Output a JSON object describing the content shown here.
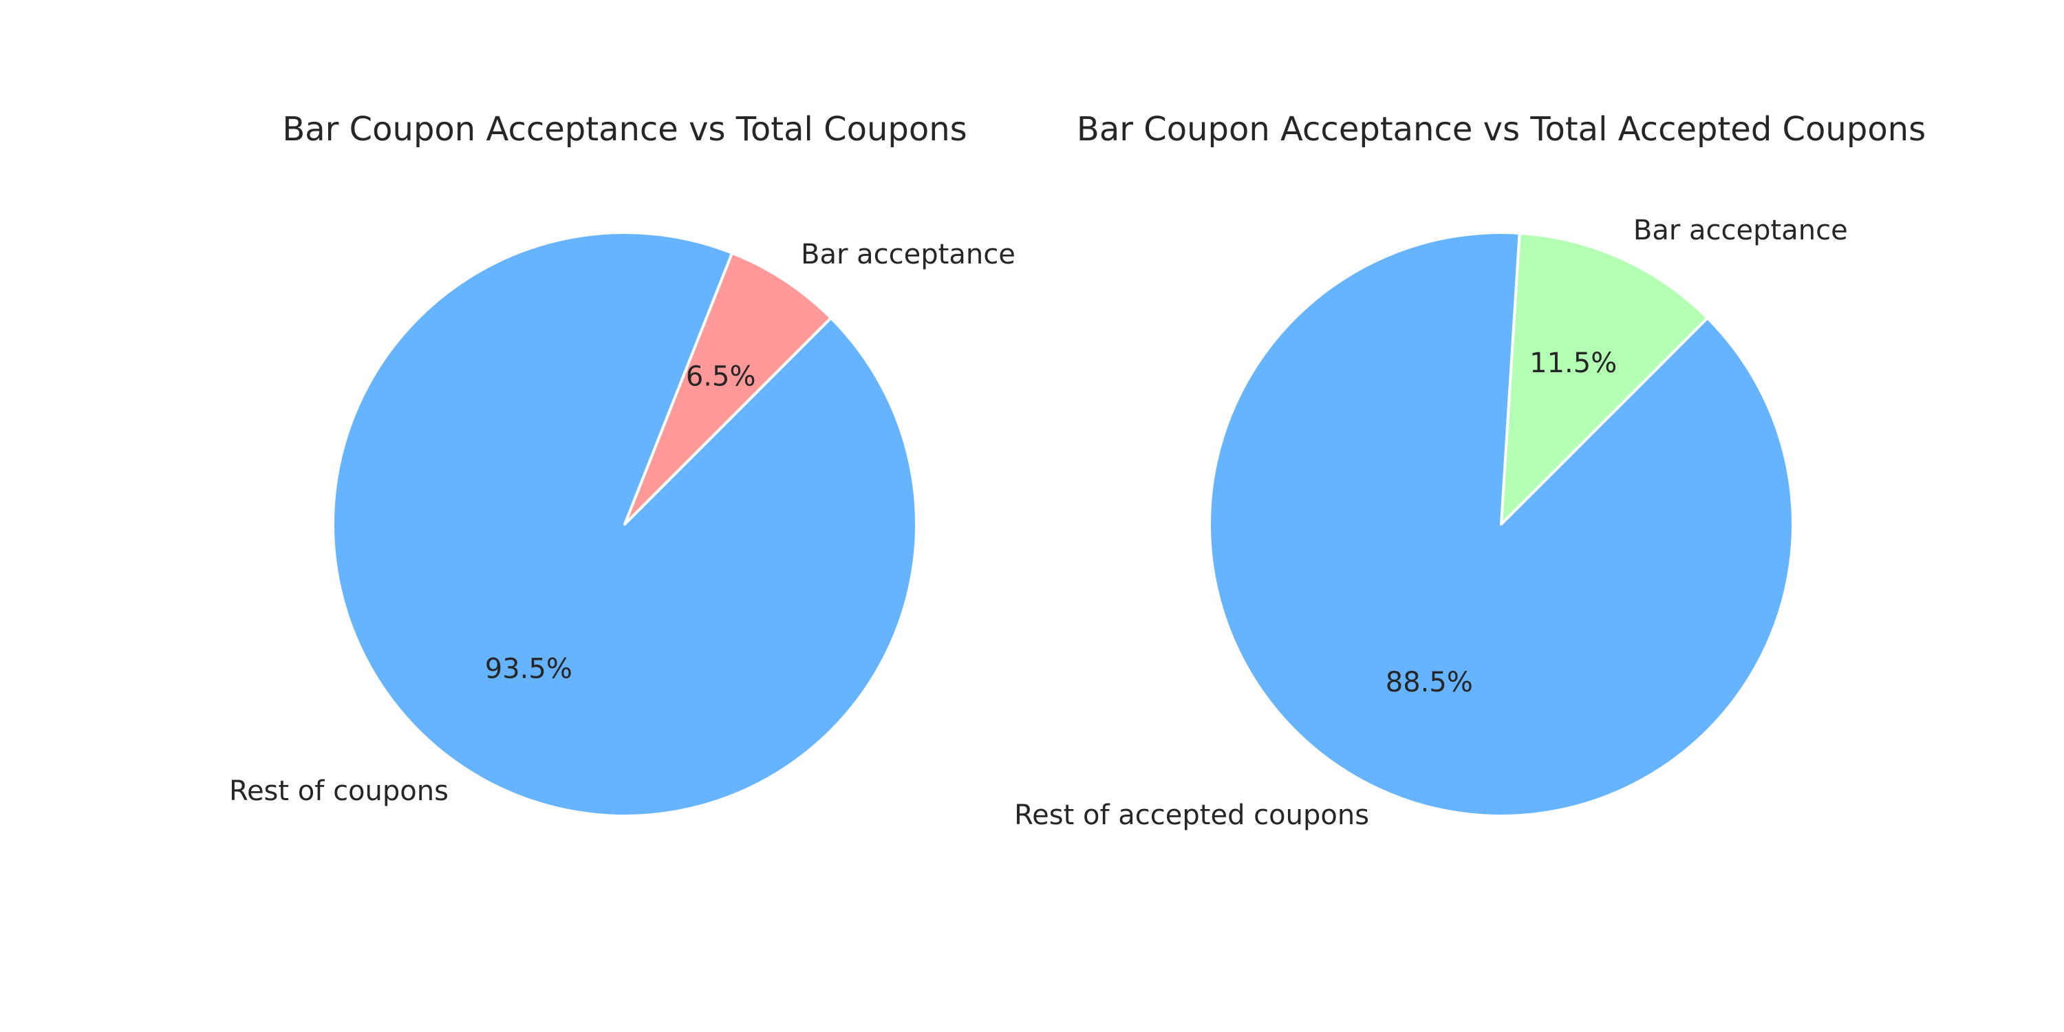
{
  "chart_data": [
    {
      "type": "pie",
      "title": "Bar Coupon Acceptance vs Total Coupons",
      "start_angle_deg": 45,
      "slices": [
        {
          "label": "Bar acceptance",
          "value": 6.5,
          "pct_label": "6.5%",
          "color": "#ff9999"
        },
        {
          "label": "Rest of coupons",
          "value": 93.5,
          "pct_label": "93.5%",
          "color": "#66b3ff"
        }
      ]
    },
    {
      "type": "pie",
      "title": "Bar Coupon Acceptance vs Total Accepted Coupons",
      "start_angle_deg": 45,
      "slices": [
        {
          "label": "Bar acceptance",
          "value": 11.5,
          "pct_label": "11.5%",
          "color": "#b3ffb3"
        },
        {
          "label": "Rest of accepted coupons",
          "value": 88.5,
          "pct_label": "88.5%",
          "color": "#66b3ff"
        }
      ]
    }
  ]
}
